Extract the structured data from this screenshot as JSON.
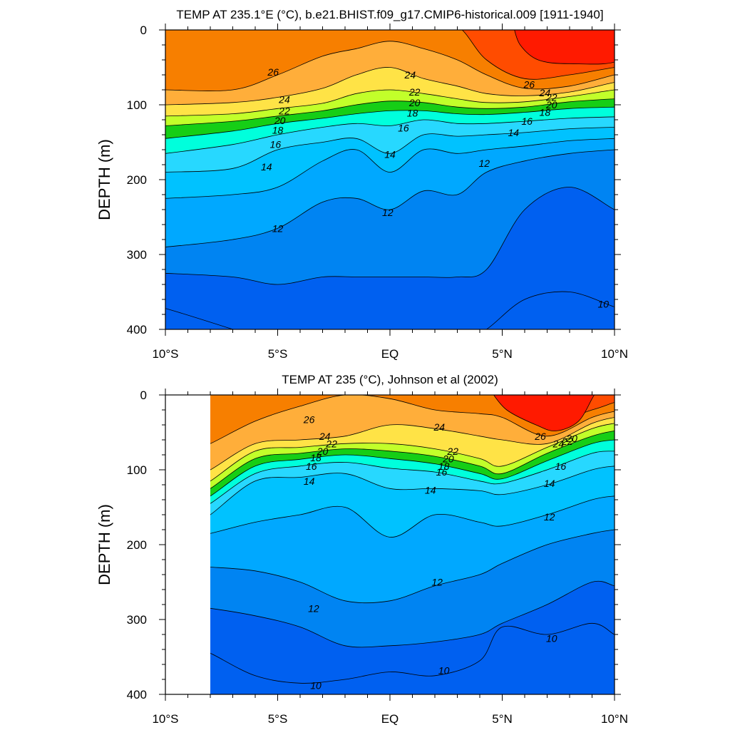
{
  "chart_data": [
    {
      "type": "heatmap",
      "title": "TEMP AT 235.1°E (°C), b.e21.BHIST.f09_g17.CMIP6-historical.009 [1911-1940]",
      "xlabel": "",
      "ylabel": "DEPTH (m)",
      "xlim": [
        -10,
        10
      ],
      "ylim": [
        0,
        400
      ],
      "x_ticks": [
        -10,
        -5,
        0,
        5,
        10
      ],
      "x_tick_labels": [
        "10°S",
        "5°S",
        "EQ",
        "5°N",
        "10°N"
      ],
      "y_ticks": [
        0,
        100,
        200,
        300,
        400
      ],
      "y_tick_labels": [
        "0",
        "100",
        "200",
        "300",
        "400"
      ],
      "data_x_range": [
        -10,
        10
      ],
      "contour_interval": 1,
      "contour_labels": [
        {
          "text": "26",
          "x": -5.2,
          "y": 56
        },
        {
          "text": "24",
          "x": 0.9,
          "y": 60
        },
        {
          "text": "24",
          "x": -4.7,
          "y": 93
        },
        {
          "text": "22",
          "x": 1.1,
          "y": 83
        },
        {
          "text": "22",
          "x": -4.7,
          "y": 108
        },
        {
          "text": "20",
          "x": 1.1,
          "y": 97
        },
        {
          "text": "20",
          "x": -4.9,
          "y": 121
        },
        {
          "text": "18",
          "x": 1.0,
          "y": 111
        },
        {
          "text": "18",
          "x": -5.0,
          "y": 134
        },
        {
          "text": "16",
          "x": 0.6,
          "y": 131
        },
        {
          "text": "16",
          "x": -5.1,
          "y": 153
        },
        {
          "text": "14",
          "x": 0.0,
          "y": 166
        },
        {
          "text": "14",
          "x": -5.5,
          "y": 183
        },
        {
          "text": "12",
          "x": 4.2,
          "y": 178
        },
        {
          "text": "12",
          "x": -0.1,
          "y": 244
        },
        {
          "text": "12",
          "x": -5.0,
          "y": 265
        },
        {
          "text": "26",
          "x": 6.2,
          "y": 73
        },
        {
          "text": "24",
          "x": 6.9,
          "y": 84
        },
        {
          "text": "22",
          "x": 7.2,
          "y": 90
        },
        {
          "text": "20",
          "x": 7.2,
          "y": 100
        },
        {
          "text": "18",
          "x": 6.9,
          "y": 110
        },
        {
          "text": "16",
          "x": 6.1,
          "y": 122
        },
        {
          "text": "14",
          "x": 5.5,
          "y": 137
        },
        {
          "text": "10",
          "x": 9.5,
          "y": 366
        }
      ],
      "profiles": [
        {
          "x": -10,
          "isotherms": {
            "27": -5,
            "26": 80,
            "24": 100,
            "22": 115,
            "20": 128,
            "18": 145,
            "16": 165,
            "14": 190,
            "13": 225,
            "12": 290,
            "11": 325,
            "10": 372
          }
        },
        {
          "x": -7,
          "isotherms": {
            "27": -5,
            "26": 80,
            "24": 97,
            "22": 112,
            "20": 122,
            "18": 135,
            "16": 153,
            "14": 185,
            "13": 220,
            "12": 280,
            "11": 330,
            "10": 400
          }
        },
        {
          "x": -5,
          "isotherms": {
            "27": -5,
            "26": 60,
            "24": 90,
            "22": 105,
            "20": 115,
            "18": 125,
            "16": 140,
            "14": 160,
            "13": 210,
            "12": 265,
            "11": 340,
            "10": 420
          }
        },
        {
          "x": -3,
          "isotherms": {
            "27": -5,
            "26": 35,
            "24": 78,
            "22": 98,
            "20": 108,
            "18": 118,
            "16": 130,
            "14": 150,
            "13": 175,
            "12": 230,
            "11": 330,
            "10": 420
          }
        },
        {
          "x": -1.5,
          "isotherms": {
            "27": -5,
            "26": 25,
            "24": 60,
            "22": 85,
            "20": 100,
            "18": 112,
            "16": 125,
            "14": 145,
            "13": 160,
            "12": 225,
            "11": 330,
            "10": 420
          }
        },
        {
          "x": 0,
          "isotherms": {
            "27": -5,
            "26": 15,
            "24": 50,
            "22": 80,
            "20": 95,
            "18": 108,
            "16": 128,
            "14": 165,
            "13": 190,
            "12": 240,
            "11": 330,
            "10": 420
          }
        },
        {
          "x": 1.5,
          "isotherms": {
            "27": -5,
            "26": 25,
            "24": 65,
            "22": 85,
            "20": 97,
            "18": 108,
            "16": 120,
            "14": 140,
            "13": 160,
            "12": 215,
            "11": 330,
            "10": 420
          }
        },
        {
          "x": 3,
          "isotherms": {
            "27": -5,
            "26": 40,
            "24": 75,
            "22": 92,
            "20": 103,
            "18": 112,
            "16": 125,
            "14": 142,
            "13": 165,
            "12": 220,
            "11": 330,
            "10": 420
          }
        },
        {
          "x": 4.3,
          "isotherms": {
            "27": 40,
            "26": 60,
            "24": 85,
            "22": 97,
            "20": 105,
            "18": 113,
            "16": 125,
            "14": 140,
            "13": 160,
            "12": 190,
            "11": 320,
            "10": 400
          }
        },
        {
          "x": 6,
          "isotherms": {
            "27": 65,
            "26": 78,
            "24": 88,
            "22": 96,
            "20": 103,
            "18": 110,
            "16": 122,
            "14": 137,
            "13": 155,
            "12": 175,
            "11": 240,
            "10": 360
          }
        },
        {
          "x": 8,
          "isotherms": {
            "27": 60,
            "26": 75,
            "24": 83,
            "22": 89,
            "20": 96,
            "18": 105,
            "16": 118,
            "14": 132,
            "13": 148,
            "12": 165,
            "11": 210,
            "10": 350
          }
        },
        {
          "x": 10,
          "isotherms": {
            "27": 50,
            "26": 60,
            "24": 70,
            "22": 80,
            "20": 92,
            "18": 103,
            "16": 116,
            "14": 130,
            "13": 145,
            "12": 160,
            "11": 240,
            "10": 370
          }
        }
      ],
      "warm_core": {
        "level": 28,
        "points": [
          [
            5.5,
            -5
          ],
          [
            5.8,
            20
          ],
          [
            6.6,
            40
          ],
          [
            8.0,
            45
          ],
          [
            10.2,
            40
          ],
          [
            10.2,
            -5
          ]
        ]
      }
    },
    {
      "type": "heatmap",
      "title": "TEMP AT 235 (°C), Johnson et al (2002)",
      "xlabel": "",
      "ylabel": "DEPTH (m)",
      "xlim": [
        -10,
        10
      ],
      "ylim": [
        0,
        400
      ],
      "x_ticks": [
        -10,
        -5,
        0,
        5,
        10
      ],
      "x_tick_labels": [
        "10°S",
        "5°S",
        "EQ",
        "5°N",
        "10°N"
      ],
      "y_ticks": [
        0,
        100,
        200,
        300,
        400
      ],
      "y_tick_labels": [
        "0",
        "100",
        "200",
        "300",
        "400"
      ],
      "data_x_range": [
        -8,
        10
      ],
      "contour_interval": 1,
      "contour_labels": [
        {
          "text": "26",
          "x": -3.6,
          "y": 33
        },
        {
          "text": "24",
          "x": -2.9,
          "y": 55
        },
        {
          "text": "22",
          "x": -2.6,
          "y": 65
        },
        {
          "text": "20",
          "x": -3.0,
          "y": 75
        },
        {
          "text": "18",
          "x": -3.3,
          "y": 84
        },
        {
          "text": "16",
          "x": -3.5,
          "y": 95
        },
        {
          "text": "14",
          "x": -3.6,
          "y": 115
        },
        {
          "text": "24",
          "x": 2.2,
          "y": 43
        },
        {
          "text": "22",
          "x": 2.8,
          "y": 75
        },
        {
          "text": "20",
          "x": 2.6,
          "y": 85
        },
        {
          "text": "18",
          "x": 2.4,
          "y": 95
        },
        {
          "text": "16",
          "x": 2.3,
          "y": 103
        },
        {
          "text": "14",
          "x": 1.8,
          "y": 127
        },
        {
          "text": "26",
          "x": 6.7,
          "y": 55
        },
        {
          "text": "24",
          "x": 7.5,
          "y": 65
        },
        {
          "text": "22",
          "x": 7.9,
          "y": 62
        },
        {
          "text": "20",
          "x": 8.1,
          "y": 58
        },
        {
          "text": "16",
          "x": 7.6,
          "y": 95
        },
        {
          "text": "14",
          "x": 7.1,
          "y": 118
        },
        {
          "text": "12",
          "x": 7.1,
          "y": 163
        },
        {
          "text": "12",
          "x": 2.1,
          "y": 250
        },
        {
          "text": "12",
          "x": -3.4,
          "y": 285
        },
        {
          "text": "10",
          "x": 7.2,
          "y": 325
        },
        {
          "text": "10",
          "x": 2.4,
          "y": 368
        },
        {
          "text": "10",
          "x": -3.3,
          "y": 388
        }
      ],
      "profiles": [
        {
          "x": -8,
          "isotherms": {
            "27": -5,
            "26": 65,
            "24": 100,
            "22": 115,
            "20": 125,
            "18": 135,
            "16": 145,
            "14": 160,
            "13": 185,
            "12": 230,
            "11": 285,
            "10": 345
          }
        },
        {
          "x": -6,
          "isotherms": {
            "27": -5,
            "26": 35,
            "24": 65,
            "22": 75,
            "20": 85,
            "18": 95,
            "16": 105,
            "14": 115,
            "13": 170,
            "12": 235,
            "11": 295,
            "10": 375
          }
        },
        {
          "x": -4,
          "isotherms": {
            "27": -5,
            "26": 15,
            "24": 60,
            "22": 70,
            "20": 78,
            "18": 86,
            "16": 95,
            "14": 110,
            "13": 160,
            "12": 250,
            "11": 310,
            "10": 385
          }
        },
        {
          "x": -2,
          "isotherms": {
            "27": -5,
            "26": 0,
            "24": 55,
            "22": 65,
            "20": 72,
            "18": 80,
            "16": 90,
            "14": 105,
            "13": 150,
            "12": 275,
            "11": 335,
            "10": 380
          }
        },
        {
          "x": 0,
          "isotherms": {
            "27": -5,
            "26": 5,
            "24": 40,
            "22": 65,
            "20": 75,
            "18": 85,
            "16": 98,
            "14": 125,
            "13": 190,
            "12": 275,
            "11": 335,
            "10": 370
          }
        },
        {
          "x": 2,
          "isotherms": {
            "27": -5,
            "26": 20,
            "24": 45,
            "22": 72,
            "20": 82,
            "18": 92,
            "16": 103,
            "14": 125,
            "13": 160,
            "12": 255,
            "11": 330,
            "10": 375
          }
        },
        {
          "x": 4,
          "isotherms": {
            "27": -5,
            "26": 25,
            "24": 55,
            "22": 85,
            "20": 95,
            "18": 105,
            "16": 115,
            "14": 128,
            "13": 170,
            "12": 240,
            "11": 320,
            "10": 355
          }
        },
        {
          "x": 5,
          "isotherms": {
            "27": -5,
            "26": 30,
            "24": 60,
            "22": 95,
            "20": 105,
            "18": 112,
            "16": 118,
            "14": 133,
            "13": 175,
            "12": 225,
            "11": 305,
            "10": 310
          }
        },
        {
          "x": 7,
          "isotherms": {
            "27": 35,
            "26": 55,
            "24": 65,
            "22": 70,
            "20": 78,
            "18": 88,
            "16": 100,
            "14": 120,
            "13": 160,
            "12": 200,
            "11": 280,
            "10": 320
          }
        },
        {
          "x": 9,
          "isotherms": {
            "27": 20,
            "26": 30,
            "24": 38,
            "22": 45,
            "20": 55,
            "18": 65,
            "16": 78,
            "14": 100,
            "13": 140,
            "12": 185,
            "11": 250,
            "10": 305
          }
        },
        {
          "x": 10,
          "isotherms": {
            "27": 10,
            "26": 22,
            "24": 30,
            "22": 38,
            "20": 48,
            "18": 60,
            "16": 75,
            "14": 95,
            "13": 135,
            "12": 180,
            "11": 255,
            "10": 320
          }
        }
      ],
      "warm_core": {
        "level": 28,
        "points": [
          [
            4.5,
            -5
          ],
          [
            5.2,
            20
          ],
          [
            6.5,
            40
          ],
          [
            7.4,
            48
          ],
          [
            8.4,
            35
          ],
          [
            9.1,
            0
          ],
          [
            9.4,
            -5
          ]
        ]
      }
    }
  ],
  "colors": {
    "28": "#ff1a00",
    "27": "#ff4c00",
    "26": "#f77f00",
    "25": "#fd9627",
    "24": "#ffae3a",
    "23": "#fecb3f",
    "22": "#ffe346",
    "21": "#ffff3f",
    "20": "#c2ff2a",
    "19": "#00ff00",
    "18": "#16ce16",
    "17": "#00ffa9",
    "16": "#00ffdc",
    "15": "#2ff0ff",
    "14": "#27d8ff",
    "13": "#00c2ff",
    "12": "#00a8ff",
    "11": "#0084f2",
    "10": "#0060f0",
    "line": "#000000",
    "frame": "#000000"
  }
}
